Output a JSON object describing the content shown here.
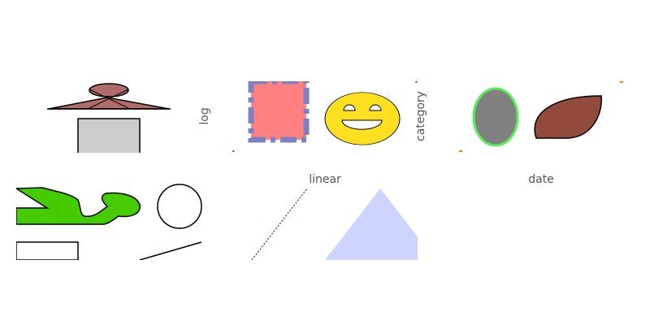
{
  "axis_labels": {
    "log": "log",
    "category": "category",
    "linear": "linear",
    "date": "date"
  },
  "colors": {
    "rose": "#b06b6b",
    "gray_box": "#cccccc",
    "pink": "#ff8080",
    "dash_blue": "#8080c0",
    "smiley_yellow": "#ffe020",
    "ellipse_gray": "#808080",
    "ellipse_green": "#55ee55",
    "leaf_brown": "#924a3c",
    "lime": "#44cc00",
    "triangle_blue": "#ccd4ff",
    "dotted_navy": "#000080",
    "orange": "#ff8000",
    "teal": "#1f7a8c"
  }
}
